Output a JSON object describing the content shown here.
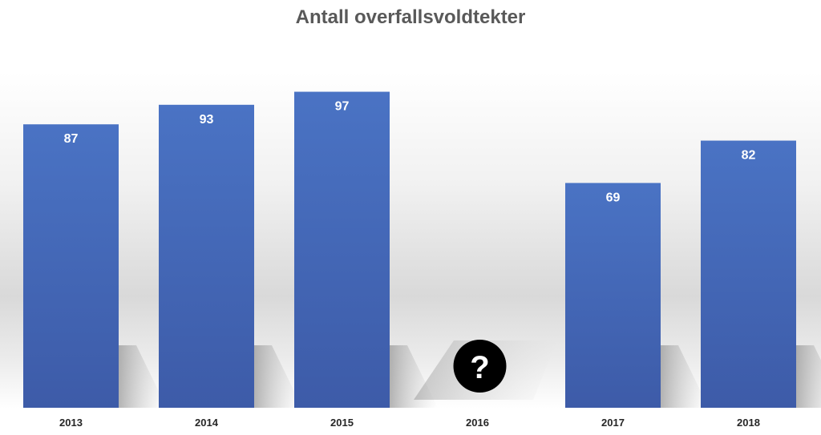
{
  "chart_data": {
    "type": "bar",
    "title": "Antall overfallsvoldtekter",
    "categories": [
      "2013",
      "2014",
      "2015",
      "2016",
      "2017",
      "2018"
    ],
    "values": [
      87,
      93,
      97,
      null,
      69,
      82
    ],
    "data_labels": [
      "87",
      "93",
      "97",
      "",
      "69",
      "82"
    ],
    "missing_marker": "?",
    "xlabel": "",
    "ylabel": "",
    "ylim": [
      0,
      120
    ],
    "grid": false,
    "legend": "none",
    "colors": {
      "bar_top": "#4a73c4",
      "bar_bottom": "#3d5ba8",
      "shadow": "#b8b8b8",
      "marker_bg": "#000000",
      "marker_fg": "#ffffff"
    }
  }
}
